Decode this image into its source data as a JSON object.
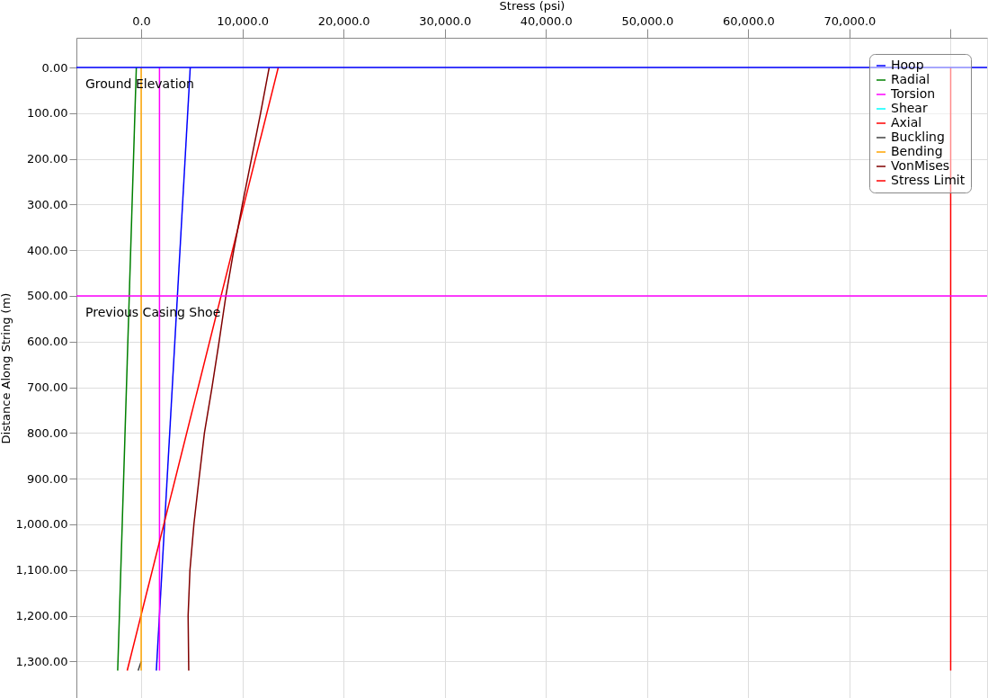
{
  "chart_data": {
    "type": "line",
    "xlabel": "Stress (psi)",
    "ylabel": "Distance Along String (m)",
    "xlim": [
      -6400,
      83600
    ],
    "ylim": [
      1380,
      -65
    ],
    "xticks": [
      {
        "value": 0,
        "label": "0.0"
      },
      {
        "value": 10000,
        "label": "10,000.0"
      },
      {
        "value": 20000,
        "label": "20,000.0"
      },
      {
        "value": 30000,
        "label": "30,000.0"
      },
      {
        "value": 40000,
        "label": "40,000.0"
      },
      {
        "value": 50000,
        "label": "50,000.0"
      },
      {
        "value": 60000,
        "label": "60,000.0"
      },
      {
        "value": 70000,
        "label": "70,000.0"
      },
      {
        "value": 80000,
        "label": null
      }
    ],
    "yticks": [
      {
        "value": 0,
        "label": "0.00"
      },
      {
        "value": 100,
        "label": "100.00"
      },
      {
        "value": 200,
        "label": "200.00"
      },
      {
        "value": 300,
        "label": "300.00"
      },
      {
        "value": 400,
        "label": "400.00"
      },
      {
        "value": 500,
        "label": "500.00"
      },
      {
        "value": 600,
        "label": "600.00"
      },
      {
        "value": 700,
        "label": "700.00"
      },
      {
        "value": 800,
        "label": "800.00"
      },
      {
        "value": 900,
        "label": "900.00"
      },
      {
        "value": 1000,
        "label": "1,000.00"
      },
      {
        "value": 1100,
        "label": "1,100.00"
      },
      {
        "value": 1200,
        "label": "1,200.00"
      },
      {
        "value": 1300,
        "label": "1,300.00"
      }
    ],
    "grid": true,
    "legend": "top right",
    "marker": "none",
    "line_style": "solid",
    "series": [
      {
        "name": "Hoop",
        "color": "#0000ff",
        "x": [
          4850,
          1500
        ],
        "values": [
          0,
          1320
        ]
      },
      {
        "name": "Radial",
        "color": "#008000",
        "x": [
          -480,
          -2320
        ],
        "values": [
          0,
          1320
        ]
      },
      {
        "name": "Torsion",
        "color": "#ff00ff",
        "x": [
          1810,
          1810
        ],
        "values": [
          0,
          1320
        ]
      },
      {
        "name": "Shear",
        "color": "#00ffff"
      },
      {
        "name": "Axial",
        "color": "#ff0000",
        "x": [
          13550,
          -1380
        ],
        "values": [
          0,
          1320
        ]
      },
      {
        "name": "Buckling",
        "color": "#404040",
        "x": [
          -300,
          0
        ],
        "values": [
          1320,
          1300
        ]
      },
      {
        "name": "Bending",
        "color": "#ffa500",
        "x": [
          0,
          0
        ],
        "values": [
          0,
          1320
        ]
      },
      {
        "name": "VonMises",
        "color": "#800000",
        "x": [
          12650,
          11800,
          10900,
          10000,
          9150,
          8370,
          7700,
          7000,
          6250,
          5720,
          5210,
          4820,
          4640,
          4700
        ],
        "values": [
          0,
          100,
          200,
          300,
          400,
          500,
          600,
          700,
          800,
          900,
          1000,
          1100,
          1200,
          1320
        ]
      },
      {
        "name": "Stress Limit",
        "color": "#ff0000",
        "x": [
          80000,
          80000
        ],
        "values": [
          0,
          1320
        ]
      }
    ],
    "ref_lines": [
      {
        "axis": "y",
        "value": 0,
        "label": "Ground Elevation",
        "color": "#0000ff"
      },
      {
        "axis": "y",
        "value": 500,
        "label": "Previous Casing Shoe",
        "color": "#ff00ff"
      }
    ]
  }
}
